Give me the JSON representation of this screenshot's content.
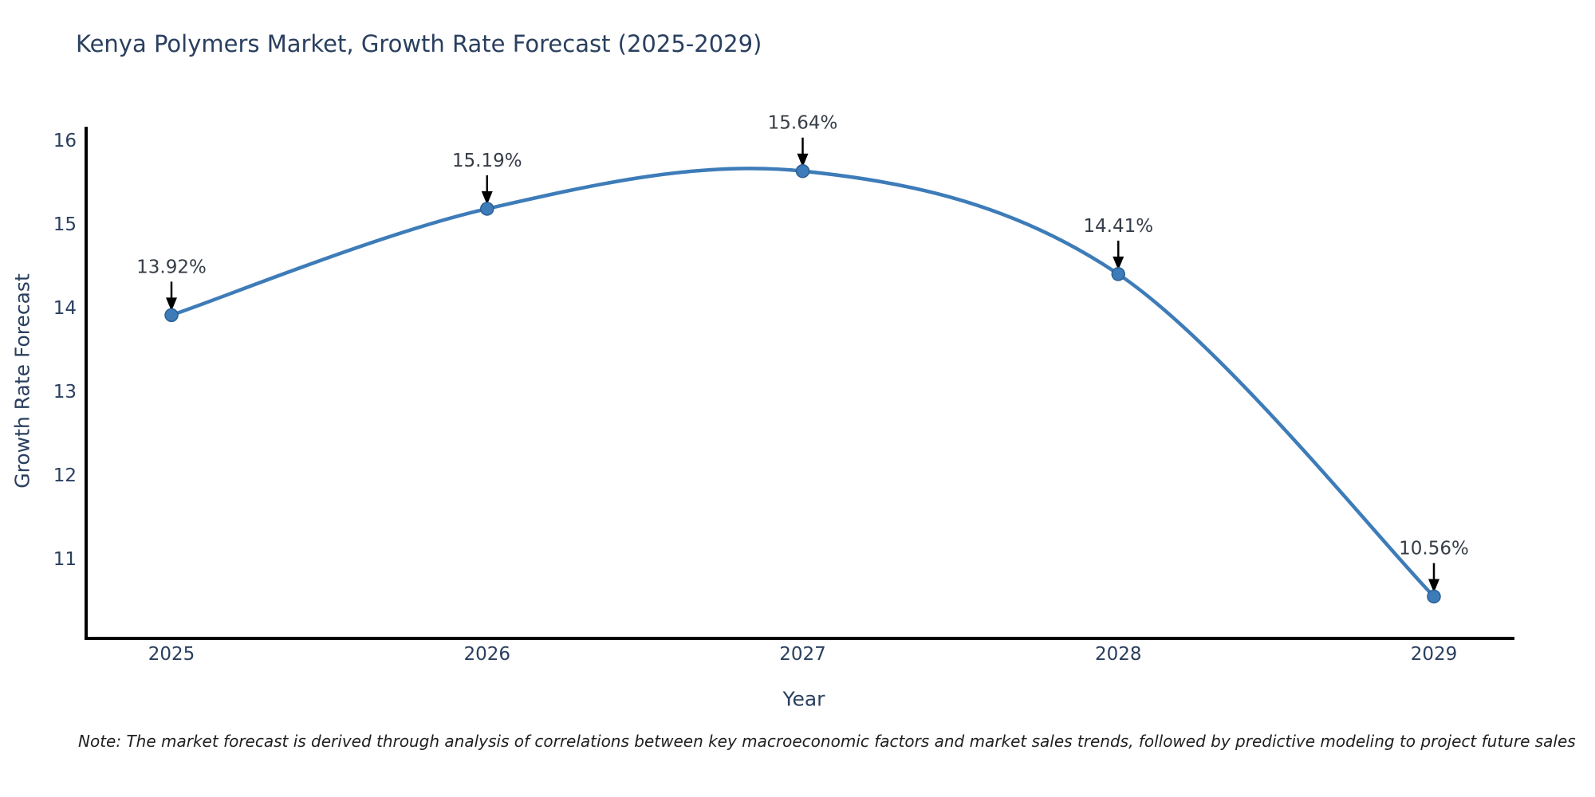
{
  "footer": {
    "note": "Note: The market forecast is derived through analysis of correlations between key macroeconomic factors and market sales trends, followed by predictive modeling to project future sales"
  },
  "chart_data": {
    "type": "line",
    "title": "Kenya Polymers Market, Growth Rate Forecast (2025-2029)",
    "xlabel": "Year",
    "ylabel": "Growth Rate Forecast",
    "categories": [
      "2025",
      "2026",
      "2027",
      "2028",
      "2029"
    ],
    "series": [
      {
        "name": "Growth Rate Forecast",
        "values": [
          13.92,
          15.19,
          15.64,
          14.41,
          10.56
        ]
      }
    ],
    "point_labels": [
      "13.92%",
      "15.19%",
      "15.64%",
      "14.41%",
      "10.56%"
    ],
    "yticks": [
      11,
      12,
      13,
      14,
      15,
      16
    ],
    "ylim": [
      10.06,
      16.17
    ],
    "line_shape": "spline",
    "grid": false,
    "legend_position": "none",
    "annotations": "arrow-down-to-point",
    "colors": {
      "line": "#3d7cb8",
      "marker": "#3d7cb8",
      "marker_edge": "#2b5f93",
      "annotation_text": "#363d47",
      "axis_text": "#2a3f5f",
      "title_text": "#2a3f5f",
      "spine": "#000000",
      "arrow": "#000000",
      "note_text": "#1f1f1f",
      "background": "#ffffff"
    }
  }
}
